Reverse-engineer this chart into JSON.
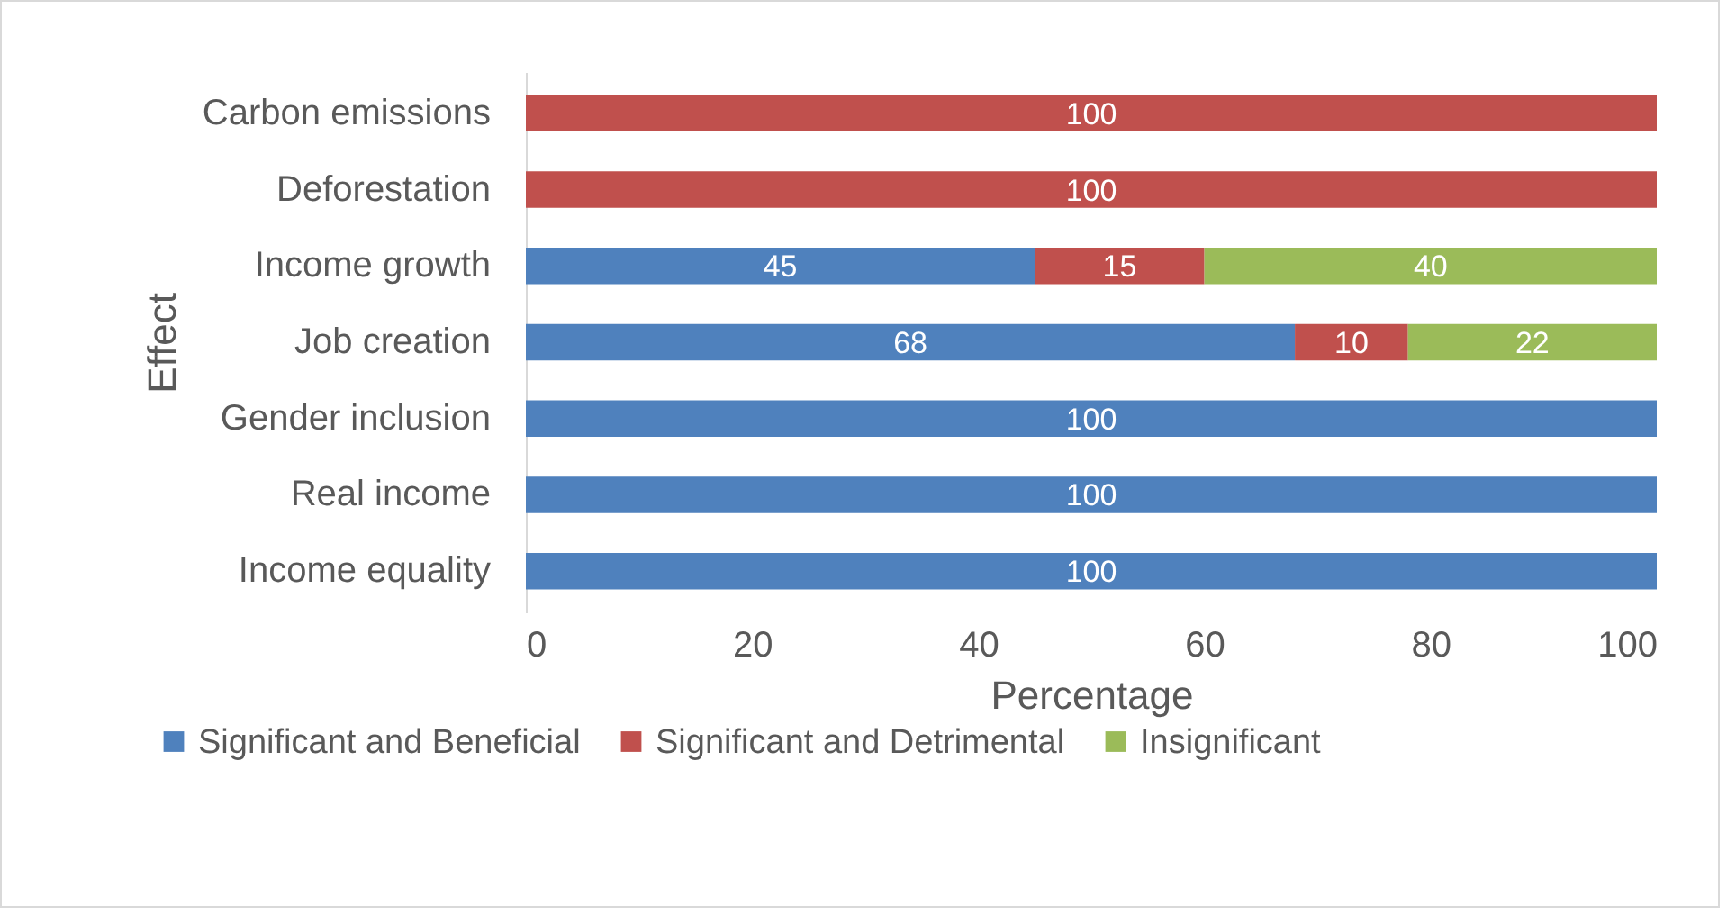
{
  "chart_data": {
    "type": "bar",
    "orientation": "horizontal",
    "stacked": true,
    "xlabel": "Percentage",
    "ylabel": "Effect",
    "categories": [
      "Carbon emissions",
      "Deforestation",
      "Income growth",
      "Job creation",
      "Gender inclusion",
      "Real income",
      "Income equality"
    ],
    "series": [
      {
        "name": "Significant and Beneficial",
        "color": "#4f81bd",
        "values": [
          null,
          null,
          45,
          68,
          100,
          100,
          100
        ]
      },
      {
        "name": "Significant and Detrimental",
        "color": "#c0504d",
        "values": [
          100,
          100,
          15,
          10,
          null,
          null,
          null
        ]
      },
      {
        "name": "Insignificant",
        "color": "#9bbb59",
        "values": [
          null,
          null,
          40,
          22,
          null,
          null,
          null
        ]
      }
    ],
    "xlim": [
      0,
      100
    ],
    "xticks": [
      0,
      20,
      40,
      60,
      80,
      100
    ],
    "grid": false,
    "legend": "bottom",
    "data_labels": true
  }
}
